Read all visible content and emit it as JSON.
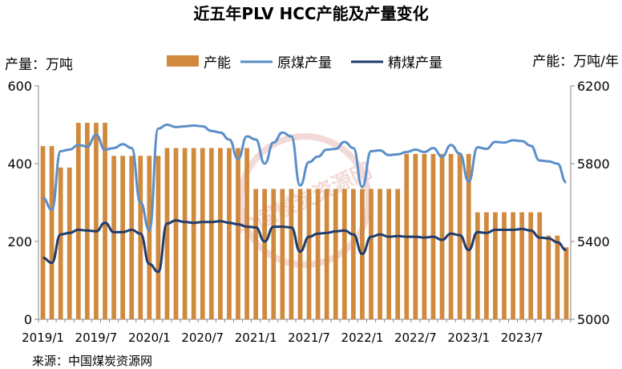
{
  "chart_data": {
    "type": "bar",
    "title": "近五年PLV HCC产能及产量变化",
    "y_left_label": "产量：万吨",
    "y_right_label": "产能：万吨/年",
    "source": "来源：中国煤炭资源网",
    "watermark": "中国煤炭资源网",
    "ylim_left": [
      0,
      600
    ],
    "ylim_right": [
      5000,
      6200
    ],
    "y_left_ticks": [
      "0",
      "200",
      "400",
      "600"
    ],
    "y_right_ticks": [
      "5000",
      "5400",
      "5800",
      "6200"
    ],
    "x_tick_labels": [
      {
        "index": 0,
        "label": "2019/1"
      },
      {
        "index": 6,
        "label": "2019/7"
      },
      {
        "index": 12,
        "label": "2020/1"
      },
      {
        "index": 18,
        "label": "2020/7"
      },
      {
        "index": 24,
        "label": "2021/1"
      },
      {
        "index": 30,
        "label": "2021/7"
      },
      {
        "index": 36,
        "label": "2022/1"
      },
      {
        "index": 42,
        "label": "2022/7"
      },
      {
        "index": 48,
        "label": "2023/1"
      },
      {
        "index": 54,
        "label": "2023/7"
      }
    ],
    "n_months": 60,
    "series": [
      {
        "name": "产能",
        "type": "bar",
        "axis": "right",
        "color": "#D08A3E",
        "values": [
          5890,
          5890,
          5780,
          5780,
          6010,
          6010,
          6010,
          6010,
          5840,
          5840,
          5840,
          5840,
          5840,
          5840,
          5880,
          5880,
          5880,
          5880,
          5880,
          5880,
          5880,
          5880,
          5880,
          5880,
          5670,
          5670,
          5670,
          5670,
          5670,
          5670,
          5670,
          5670,
          5670,
          5670,
          5670,
          5670,
          5670,
          5670,
          5670,
          5670,
          5670,
          5850,
          5850,
          5850,
          5850,
          5850,
          5850,
          5850,
          5850,
          5550,
          5550,
          5550,
          5550,
          5550,
          5550,
          5550,
          5550,
          5430,
          5430,
          5370
        ]
      },
      {
        "name": "原煤产量",
        "type": "line",
        "axis": "left",
        "color": "#5B8FC9",
        "values": [
          312,
          282,
          432,
          436,
          448,
          444,
          474,
          436,
          440,
          450,
          440,
          300,
          229,
          490,
          500,
          494,
          496,
          498,
          496,
          484,
          480,
          462,
          412,
          470,
          462,
          400,
          454,
          480,
          470,
          344,
          404,
          418,
          436,
          438,
          456,
          440,
          340,
          432,
          434,
          422,
          424,
          430,
          436,
          430,
          440,
          418,
          448,
          426,
          354,
          442,
          438,
          456,
          454,
          460,
          458,
          446,
          408,
          406,
          400,
          352
        ]
      },
      {
        "name": "精煤产量",
        "type": "line",
        "axis": "left",
        "color": "#1F3D6E",
        "values": [
          158,
          145,
          218,
          222,
          230,
          228,
          226,
          248,
          224,
          224,
          230,
          220,
          142,
          122,
          246,
          254,
          250,
          248,
          250,
          250,
          252,
          248,
          244,
          238,
          236,
          200,
          238,
          238,
          236,
          174,
          212,
          220,
          222,
          226,
          228,
          218,
          168,
          212,
          218,
          212,
          214,
          212,
          212,
          210,
          212,
          204,
          220,
          216,
          178,
          224,
          222,
          230,
          230,
          230,
          232,
          228,
          210,
          208,
          198,
          178
        ]
      }
    ],
    "legend": "top",
    "grid": false
  }
}
